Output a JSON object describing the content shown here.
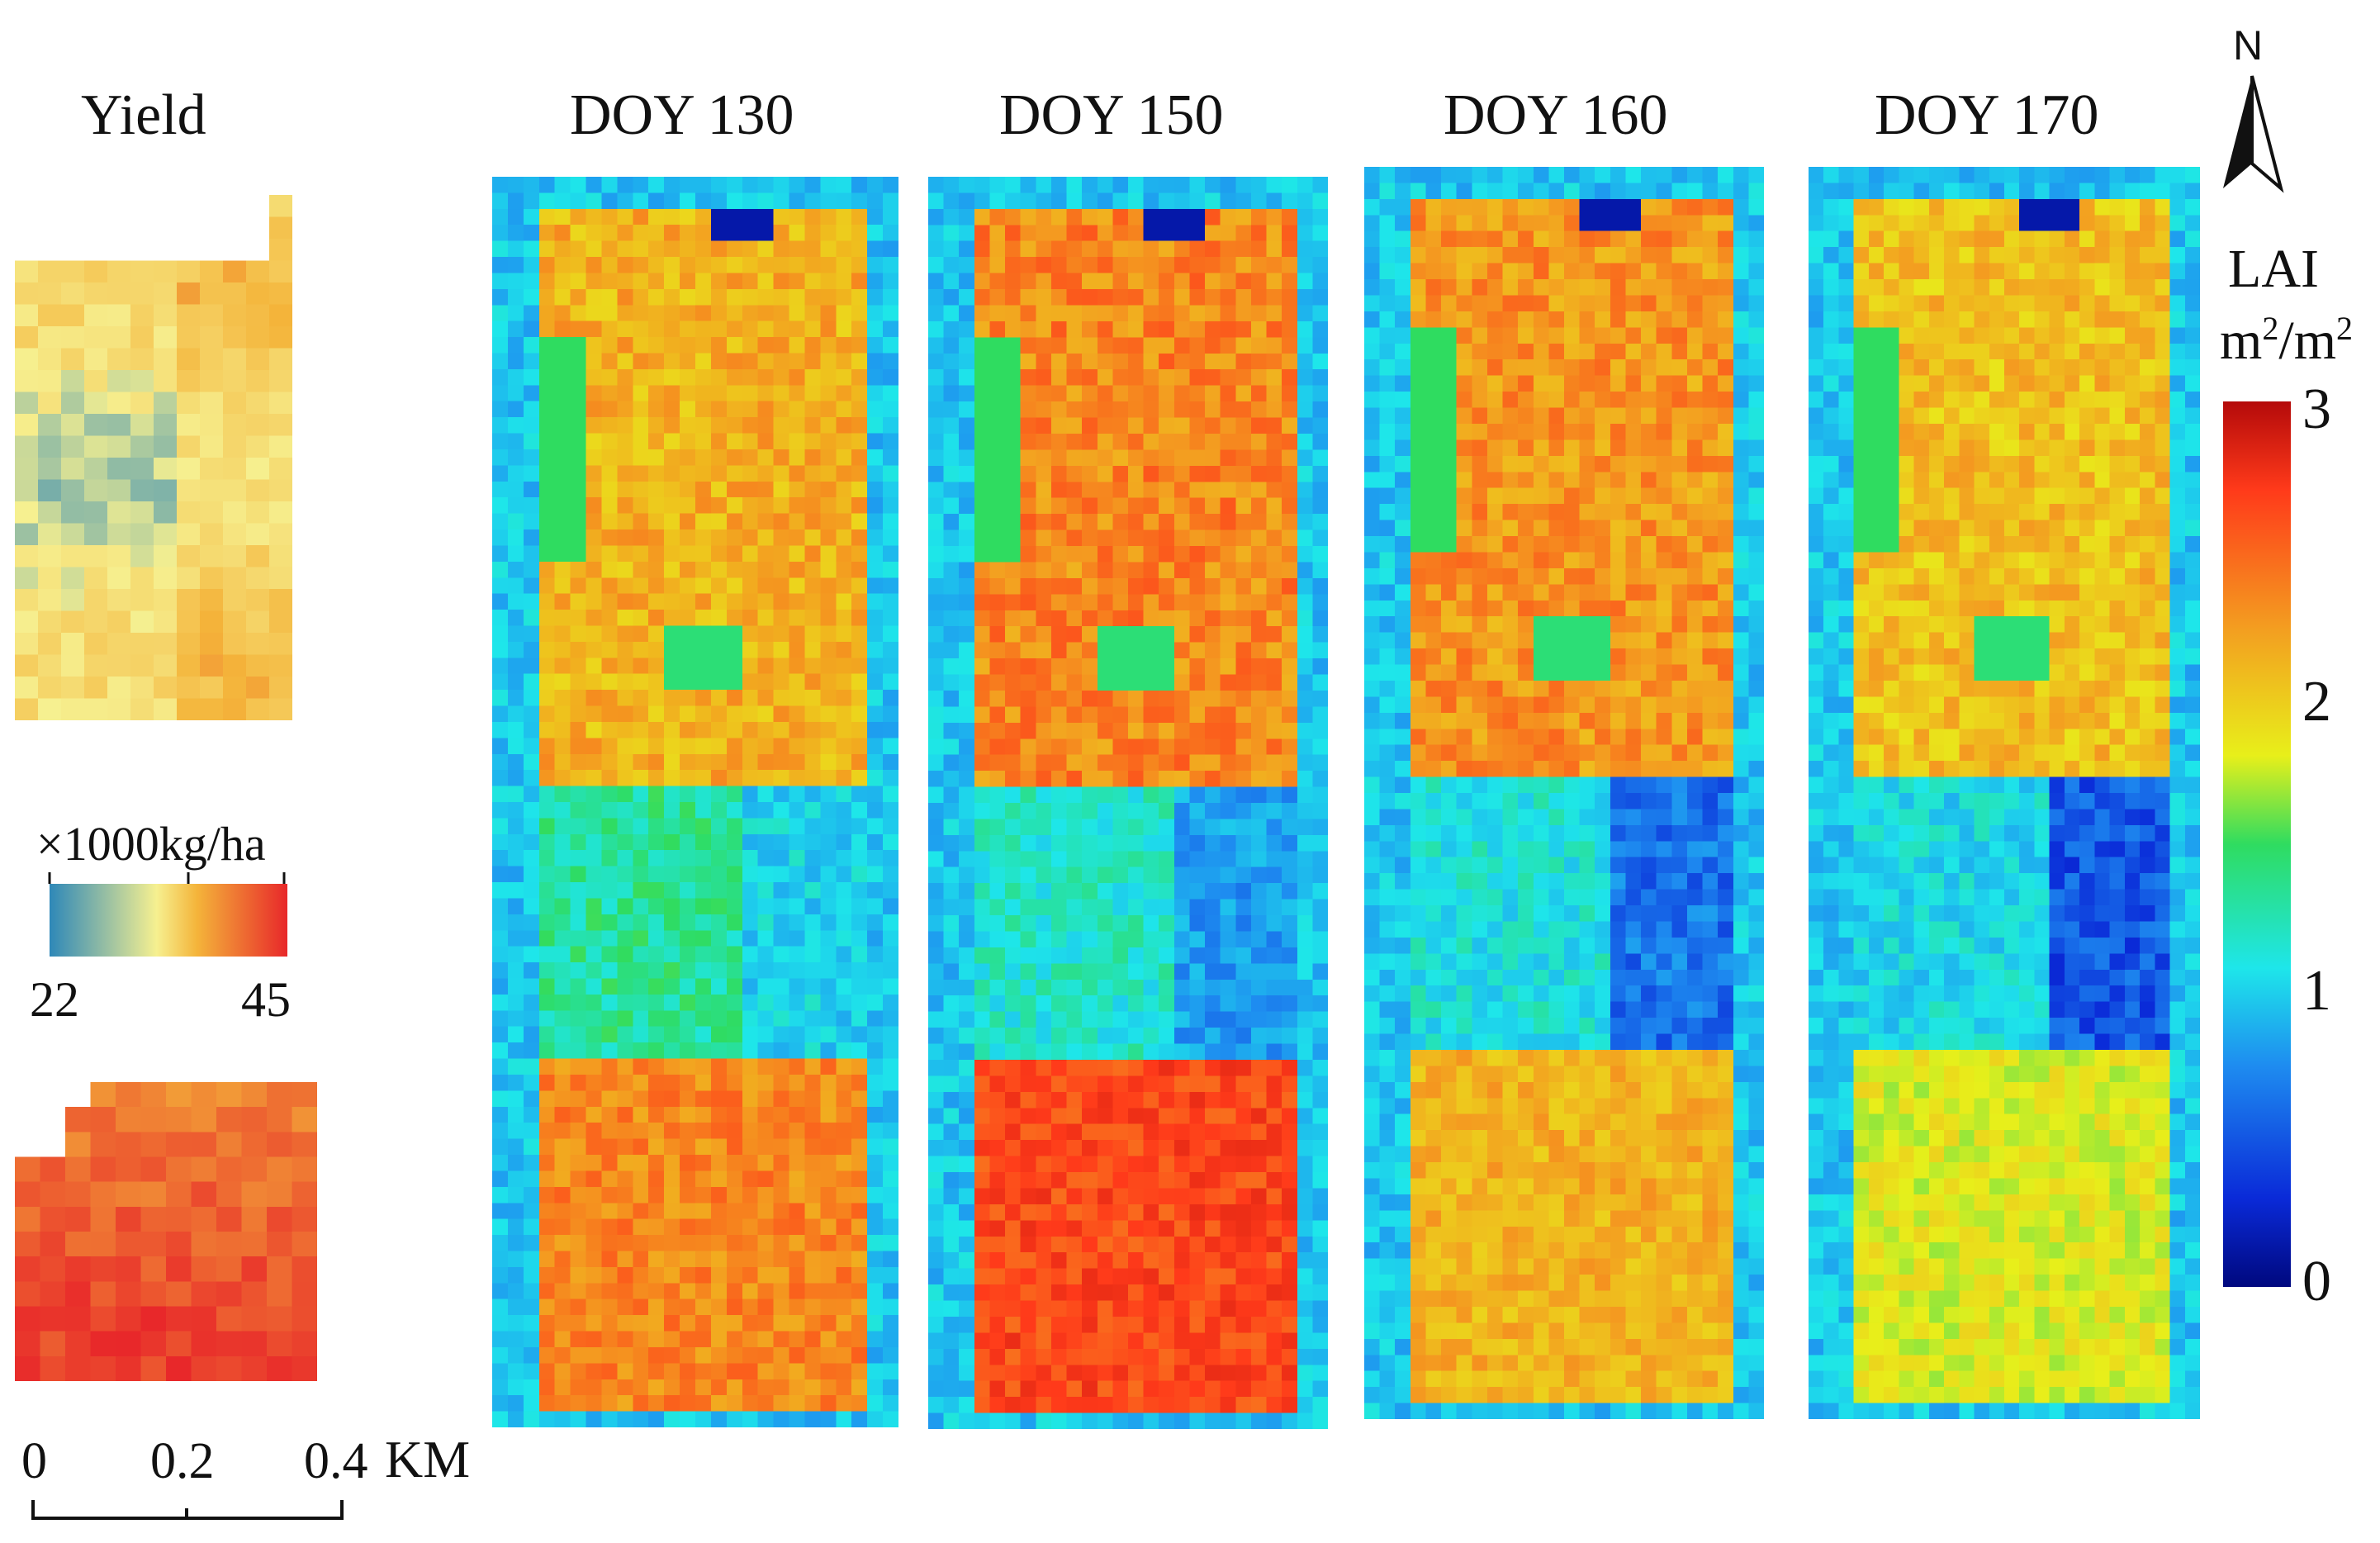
{
  "titles": {
    "yield": "Yield",
    "doy130": "DOY 130",
    "doy150": "DOY 150",
    "doy160": "DOY 160",
    "doy170": "DOY 170"
  },
  "yield_legend": {
    "unit": "×1000kg/ha",
    "min": "22",
    "max": "45",
    "colors": [
      "#2e88b8",
      "#f6f090",
      "#f4b43a",
      "#e8282a"
    ]
  },
  "lai_legend": {
    "title": "LAI",
    "unit_base": "m",
    "unit_exp": "2",
    "unit_sep": "/",
    "ticks": [
      "3",
      "2",
      "1",
      "0"
    ],
    "colors": [
      "#b40a0a",
      "#ff3a1a",
      "#f3a020",
      "#e8ef1a",
      "#2fdc60",
      "#1ee6ea",
      "#1e8cf0",
      "#0a2ad8",
      "#00087e"
    ]
  },
  "north": {
    "label": "N"
  },
  "scale_bar": {
    "ticks": [
      "0",
      "0.2",
      "0.4"
    ],
    "unit": "KM"
  }
}
